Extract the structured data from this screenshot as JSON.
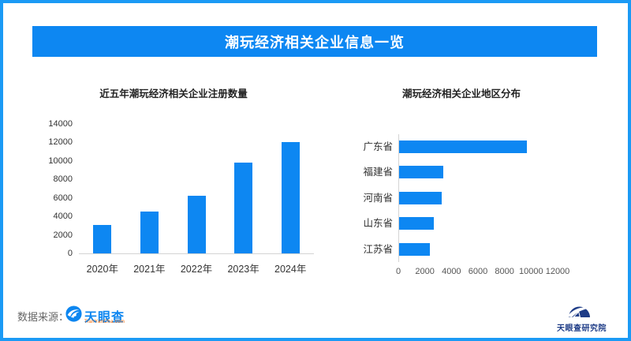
{
  "header": {
    "title": "潮玩经济相关企业信息一览"
  },
  "chart_data": [
    {
      "type": "bar",
      "orientation": "vertical",
      "title": "近五年潮玩经济相关企业注册数量",
      "categories": [
        "2020年",
        "2021年",
        "2022年",
        "2023年",
        "2024年"
      ],
      "values": [
        3100,
        4500,
        6200,
        9800,
        12000
      ],
      "ylabel": "",
      "xlabel": "",
      "ylim": [
        0,
        14000
      ],
      "yticks": [
        0,
        2000,
        4000,
        6000,
        8000,
        10000,
        12000,
        14000
      ],
      "grid": false,
      "legend": "none"
    },
    {
      "type": "bar",
      "orientation": "horizontal",
      "title": "潮玩经济相关企业地区分布",
      "categories": [
        "广东省",
        "福建省",
        "河南省",
        "山东省",
        "江苏省"
      ],
      "values": [
        9600,
        3300,
        3200,
        2600,
        2300
      ],
      "ylabel": "",
      "xlabel": "",
      "xlim": [
        0,
        12000
      ],
      "xticks": [
        0,
        2000,
        4000,
        6000,
        8000,
        10000,
        12000
      ],
      "grid": false,
      "legend": "none"
    }
  ],
  "footer": {
    "source_label": "数据来源：",
    "tianyancha_logo_text": "天眼查",
    "tianyancha_logo_sub": "TianYanCha.com",
    "research_institute_name": "天眼查研究院"
  },
  "colors": {
    "brand_blue": "#0d87f2",
    "border_blue": "#1b9af5",
    "logo_orange": "#ff6a00",
    "institute_navy": "#1e3c87",
    "axis_gray": "#d4d4d4"
  }
}
